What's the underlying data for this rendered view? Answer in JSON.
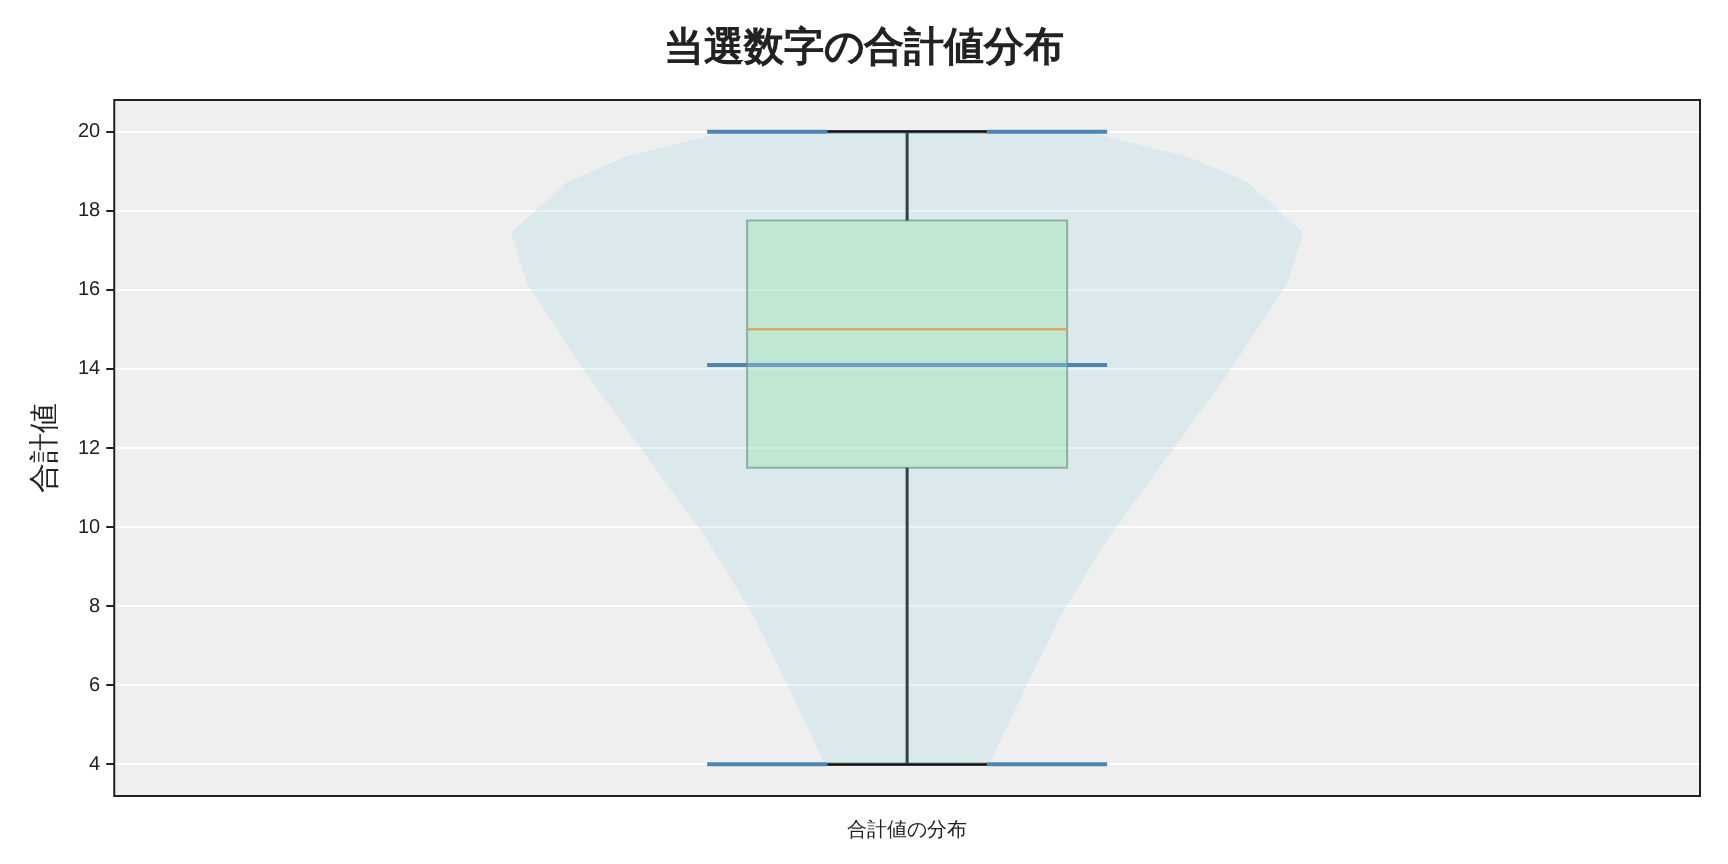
{
  "chart_data": {
    "type": "box",
    "title": "当選数字の合計値分布",
    "ylabel": "合計値",
    "categories": [
      "合計値の分布"
    ],
    "boxes": [
      {
        "low": 4,
        "q1": 11.5,
        "median": 15,
        "q3": 17.75,
        "high": 20,
        "mean": 14.1
      }
    ],
    "ylim": [
      3.2,
      20.8
    ],
    "yticks": [
      4,
      6,
      8,
      10,
      12,
      14,
      16,
      18,
      20
    ],
    "grid": "y",
    "legend": false
  }
}
